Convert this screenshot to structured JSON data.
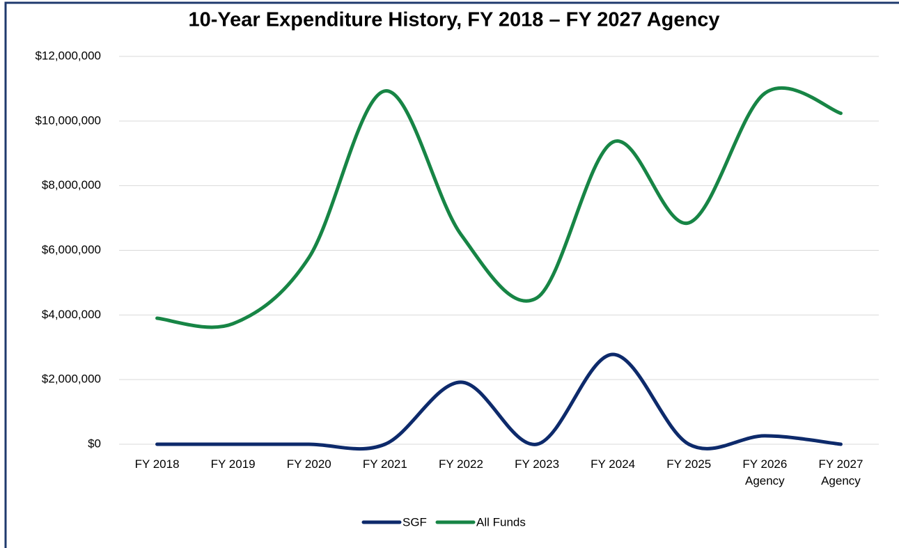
{
  "chart_data": {
    "type": "line",
    "title": "10-Year Expenditure History, FY 2018 – FY 2027 Agency",
    "categories": [
      "FY 2018",
      "FY 2019",
      "FY 2020",
      "FY 2021",
      "FY 2022",
      "FY 2023",
      "FY 2024",
      "FY 2025",
      "FY 2026 Agency",
      "FY 2027 Agency"
    ],
    "series": [
      {
        "name": "SGF",
        "color": "#0d2a6b",
        "values": [
          0,
          0,
          0,
          0,
          1920000,
          0,
          2780000,
          0,
          260000,
          0
        ]
      },
      {
        "name": "All Funds",
        "color": "#178545",
        "values": [
          3900000,
          3730000,
          5780000,
          10930000,
          6490000,
          4530000,
          9350000,
          6850000,
          10860000,
          10240000
        ]
      }
    ],
    "ylim": [
      0,
      12000000
    ],
    "yticks": [
      {
        "value": 0,
        "label": "$0"
      },
      {
        "value": 2000000,
        "label": "$2,000,000"
      },
      {
        "value": 4000000,
        "label": "$4,000,000"
      },
      {
        "value": 6000000,
        "label": "$6,000,000"
      },
      {
        "value": 8000000,
        "label": "$8,000,000"
      },
      {
        "value": 10000000,
        "label": "$10,000,000"
      },
      {
        "value": 12000000,
        "label": "$12,000,000"
      }
    ],
    "grid": true,
    "smooth": true,
    "legend": "bottom"
  }
}
